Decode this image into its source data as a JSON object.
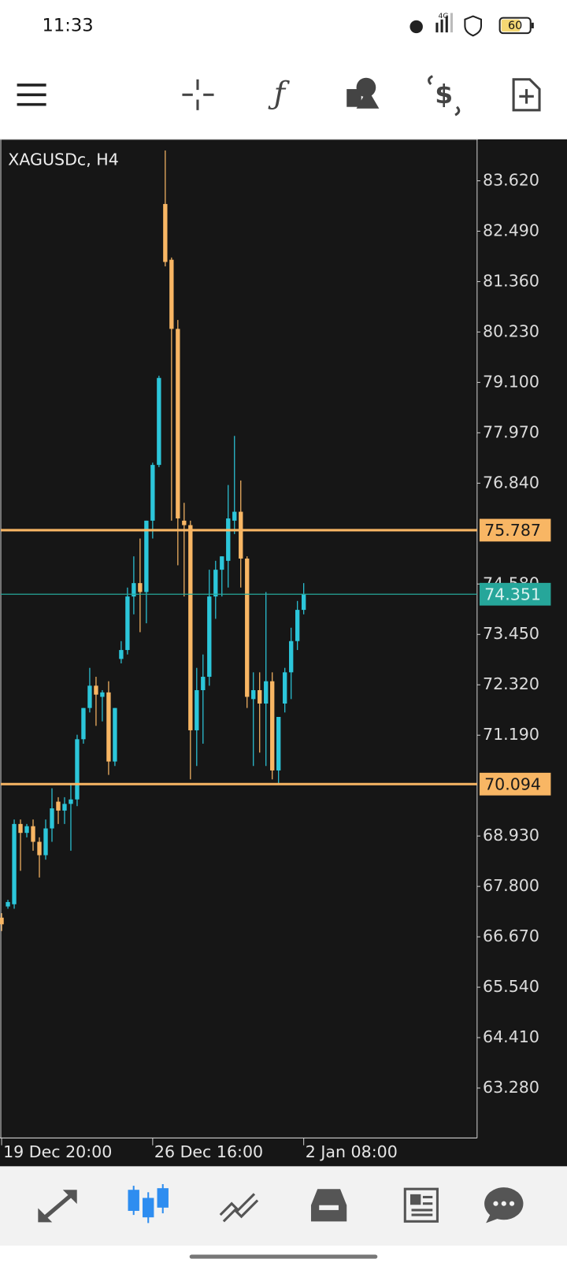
{
  "status_bar": {
    "time": "11:33",
    "battery": "60"
  },
  "chart_data": {
    "type": "candlestick",
    "title": "XAGUSDc, H4",
    "categories": [
      "19 Dec 20:00",
      null,
      null,
      null,
      null,
      null,
      null,
      null,
      null,
      null,
      null,
      null,
      null,
      null,
      null,
      null,
      null,
      null,
      null,
      null,
      null,
      null,
      null,
      null,
      "26 Dec 16:00",
      null,
      null,
      null,
      null,
      null,
      null,
      null,
      null,
      null,
      null,
      null,
      null,
      null,
      null,
      null,
      null,
      null,
      null,
      null,
      null,
      null,
      null,
      null,
      "2 Jan 08:00"
    ],
    "open": [
      67.1,
      67.35,
      67.4,
      69.2,
      69.0,
      69.15,
      68.8,
      68.5,
      69.1,
      69.7,
      69.5,
      69.65,
      69.75,
      71.1,
      71.8,
      72.3,
      72.05,
      72.15,
      70.6,
      72.9,
      73.1,
      74.3,
      74.6,
      74.4,
      76.0,
      77.25,
      83.1,
      81.85,
      80.3,
      76.0,
      75.9,
      71.3,
      72.2,
      72.5,
      74.3,
      74.9,
      75.1,
      76.0,
      76.2,
      75.15,
      72.0,
      72.2,
      71.9,
      72.4,
      70.4,
      71.9,
      72.6,
      73.3,
      74.0
    ],
    "high": [
      67.2,
      67.5,
      69.3,
      69.3,
      69.2,
      69.3,
      68.9,
      69.3,
      70.0,
      69.8,
      69.8,
      70.1,
      71.2,
      71.8,
      72.7,
      72.5,
      72.2,
      72.4,
      71.8,
      73.3,
      74.5,
      75.2,
      75.6,
      76.0,
      77.3,
      79.25,
      84.3,
      81.9,
      80.5,
      76.4,
      76.0,
      72.7,
      73.0,
      74.9,
      75.1,
      75.2,
      76.8,
      77.9,
      76.9,
      75.2,
      72.6,
      72.6,
      74.4,
      72.6,
      71.6,
      72.7,
      73.6,
      74.2,
      74.6
    ],
    "low": [
      66.8,
      67.3,
      67.3,
      68.15,
      68.9,
      68.6,
      68.0,
      68.4,
      68.8,
      69.2,
      69.2,
      68.6,
      69.6,
      71.0,
      71.7,
      71.4,
      71.5,
      70.3,
      70.5,
      72.8,
      73.0,
      73.9,
      73.5,
      73.7,
      75.6,
      77.2,
      81.7,
      76.0,
      75.0,
      74.3,
      70.2,
      70.5,
      71.0,
      72.3,
      73.8,
      74.3,
      74.5,
      75.7,
      74.5,
      71.8,
      70.5,
      70.8,
      70.5,
      70.2,
      70.1,
      71.7,
      72.0,
      73.1,
      73.9
    ],
    "close": [
      66.95,
      67.45,
      69.2,
      69.0,
      69.15,
      68.8,
      68.5,
      69.1,
      69.55,
      69.5,
      69.65,
      69.75,
      71.1,
      71.8,
      72.3,
      72.1,
      72.15,
      70.6,
      71.8,
      73.1,
      74.3,
      74.6,
      74.4,
      76.0,
      77.25,
      79.2,
      81.8,
      80.3,
      76.05,
      75.9,
      71.3,
      72.2,
      72.5,
      74.3,
      74.9,
      75.2,
      76.05,
      76.2,
      75.15,
      72.05,
      72.2,
      71.9,
      72.4,
      70.4,
      71.6,
      72.6,
      73.3,
      74.0,
      74.351
    ],
    "up_color": "#2cc6da",
    "down_color": "#f8b664",
    "ylim": [
      62.16,
      84.55
    ],
    "yticks": [
      {
        "value": 83.62,
        "label": "83.620"
      },
      {
        "value": 82.49,
        "label": "82.490"
      },
      {
        "value": 81.36,
        "label": "81.360"
      },
      {
        "value": 80.23,
        "label": "80.230"
      },
      {
        "value": 79.1,
        "label": "79.100"
      },
      {
        "value": 77.97,
        "label": "77.970"
      },
      {
        "value": 76.84,
        "label": "76.840"
      },
      {
        "value": 74.58,
        "label": "74.580"
      },
      {
        "value": 73.45,
        "label": "73.450"
      },
      {
        "value": 72.32,
        "label": "72.320"
      },
      {
        "value": 71.19,
        "label": "71.190"
      },
      {
        "value": 68.93,
        "label": "68.930"
      },
      {
        "value": 67.8,
        "label": "67.800"
      },
      {
        "value": 66.67,
        "label": "66.670"
      },
      {
        "value": 65.54,
        "label": "65.540"
      },
      {
        "value": 64.41,
        "label": "64.410"
      },
      {
        "value": 63.28,
        "label": "63.280"
      }
    ],
    "levels": [
      {
        "value": 75.787,
        "color": "#f8b664"
      },
      {
        "value": 74.351,
        "color": "#26a69a"
      },
      {
        "value": 70.094,
        "color": "#f8b664"
      }
    ],
    "grid": false
  }
}
